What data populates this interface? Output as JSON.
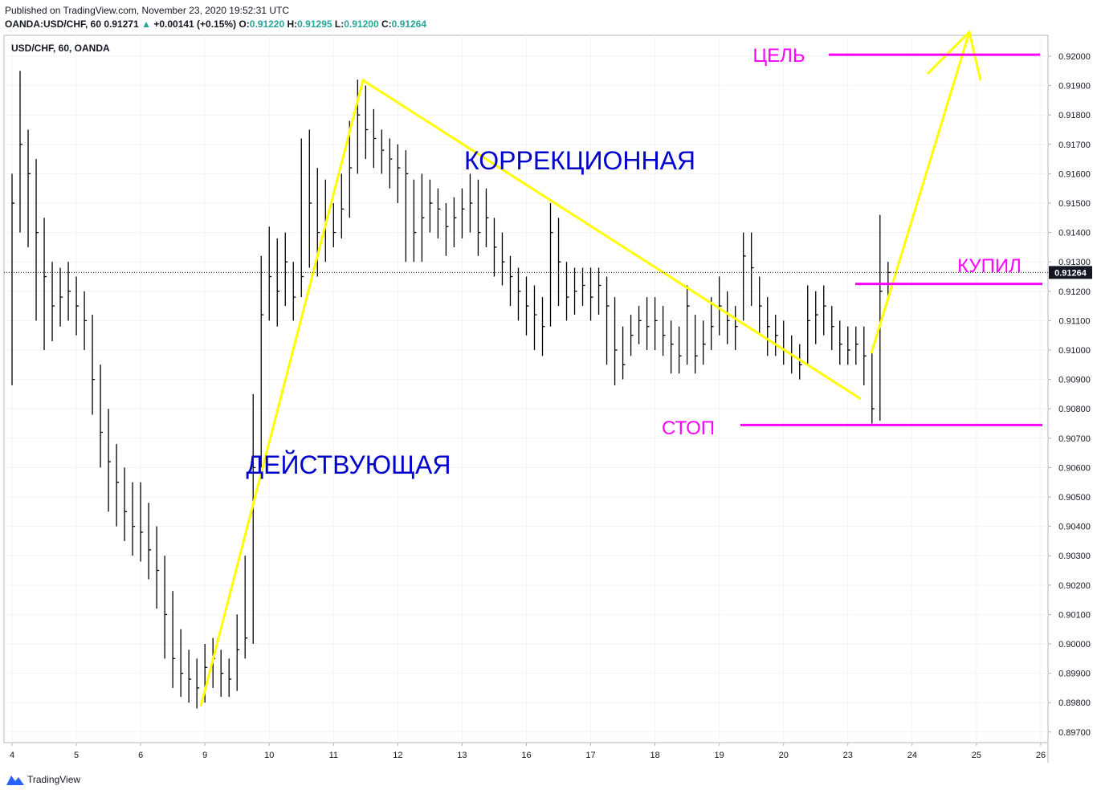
{
  "header": {
    "published": "Published on TradingView.com, November 23, 2020 19:52:31 UTC",
    "symbol": "OANDA:USD/CHF, 60",
    "price": "0.91271",
    "arrow": "▲",
    "change": "+0.00141 (+0.15%)",
    "o_label": "O:",
    "o": "0.91220",
    "h_label": "H:",
    "h": "0.91295",
    "l_label": "L:",
    "l": "0.91200",
    "c_label": "C:",
    "c": "0.91264"
  },
  "footer": {
    "brand": "TradingView"
  },
  "chart_data": {
    "type": "ohlc",
    "title": "USD/CHF, 60, OANDA",
    "color": "#000000",
    "grid": true,
    "xlim": [
      -0.125,
      16.113
    ],
    "ylim": [
      0.89664,
      0.92071
    ],
    "xticks": [
      {
        "value": 0,
        "label": "4"
      },
      {
        "value": 1,
        "label": "5"
      },
      {
        "value": 2,
        "label": "6"
      },
      {
        "value": 3,
        "label": "9"
      },
      {
        "value": 4,
        "label": "10"
      },
      {
        "value": 5,
        "label": "11"
      },
      {
        "value": 6,
        "label": "12"
      },
      {
        "value": 7,
        "label": "13"
      },
      {
        "value": 8,
        "label": "16"
      },
      {
        "value": 9,
        "label": "17"
      },
      {
        "value": 10,
        "label": "18"
      },
      {
        "value": 11,
        "label": "19"
      },
      {
        "value": 12,
        "label": "20"
      },
      {
        "value": 13,
        "label": "23"
      },
      {
        "value": 14,
        "label": "24"
      },
      {
        "value": 15,
        "label": "25"
      },
      {
        "value": 16,
        "label": "26"
      }
    ],
    "yticks": [
      {
        "value": 0.897,
        "label": "0.89700"
      },
      {
        "value": 0.898,
        "label": "0.89800"
      },
      {
        "value": 0.899,
        "label": "0.89900"
      },
      {
        "value": 0.9,
        "label": "0.90000"
      },
      {
        "value": 0.901,
        "label": "0.90100"
      },
      {
        "value": 0.902,
        "label": "0.90200"
      },
      {
        "value": 0.903,
        "label": "0.90300"
      },
      {
        "value": 0.904,
        "label": "0.90400"
      },
      {
        "value": 0.905,
        "label": "0.90500"
      },
      {
        "value": 0.906,
        "label": "0.90600"
      },
      {
        "value": 0.907,
        "label": "0.90700"
      },
      {
        "value": 0.908,
        "label": "0.90800"
      },
      {
        "value": 0.909,
        "label": "0.90900"
      },
      {
        "value": 0.91,
        "label": "0.91000"
      },
      {
        "value": 0.911,
        "label": "0.91100"
      },
      {
        "value": 0.912,
        "label": "0.91200"
      },
      {
        "value": 0.913,
        "label": "0.91300"
      },
      {
        "value": 0.914,
        "label": "0.91400"
      },
      {
        "value": 0.915,
        "label": "0.91500"
      },
      {
        "value": 0.916,
        "label": "0.91600"
      },
      {
        "value": 0.917,
        "label": "0.91700"
      },
      {
        "value": 0.918,
        "label": "0.91800"
      },
      {
        "value": 0.919,
        "label": "0.91900"
      },
      {
        "value": 0.92,
        "label": "0.92000"
      }
    ],
    "x": [
      0,
      0.125,
      0.25,
      0.375,
      0.5,
      0.625,
      0.75,
      0.875,
      1,
      1.125,
      1.25,
      1.375,
      1.5,
      1.625,
      1.75,
      1.875,
      2,
      2.125,
      2.25,
      2.375,
      2.5,
      2.625,
      2.75,
      2.875,
      3,
      3.125,
      3.25,
      3.375,
      3.5,
      3.625,
      3.75,
      3.875,
      4,
      4.125,
      4.25,
      4.375,
      4.5,
      4.625,
      4.75,
      4.875,
      5,
      5.125,
      5.25,
      5.375,
      5.5,
      5.625,
      5.75,
      5.875,
      6,
      6.125,
      6.25,
      6.375,
      6.5,
      6.625,
      6.75,
      6.875,
      7,
      7.125,
      7.25,
      7.375,
      7.5,
      7.625,
      7.75,
      7.875,
      8,
      8.125,
      8.25,
      8.375,
      8.5,
      8.625,
      8.75,
      8.875,
      9,
      9.125,
      9.25,
      9.375,
      9.5,
      9.625,
      9.75,
      9.875,
      10,
      10.125,
      10.25,
      10.375,
      10.5,
      10.625,
      10.75,
      10.875,
      11,
      11.125,
      11.25,
      11.375,
      11.5,
      11.625,
      11.75,
      11.875,
      12,
      12.125,
      12.25,
      12.375,
      12.5,
      12.625,
      12.75,
      12.875,
      13,
      13.125,
      13.25,
      13.375,
      13.5,
      13.625
    ],
    "high": [
      0.916,
      0.9195,
      0.9175,
      0.9165,
      0.9145,
      0.913,
      0.9128,
      0.913,
      0.9125,
      0.912,
      0.9112,
      0.9095,
      0.908,
      0.9068,
      0.906,
      0.9055,
      0.9055,
      0.9048,
      0.904,
      0.903,
      0.9018,
      0.9005,
      0.8998,
      0.8995,
      0.9,
      0.9002,
      0.8998,
      0.8995,
      0.901,
      0.903,
      0.9085,
      0.9132,
      0.9142,
      0.9138,
      0.914,
      0.913,
      0.9172,
      0.9175,
      0.9162,
      0.9158,
      0.915,
      0.916,
      0.9178,
      0.9192,
      0.919,
      0.9182,
      0.9175,
      0.9172,
      0.917,
      0.9168,
      0.9158,
      0.916,
      0.9158,
      0.9155,
      0.915,
      0.9152,
      0.9155,
      0.916,
      0.9158,
      0.9155,
      0.9145,
      0.914,
      0.9132,
      0.9128,
      0.9125,
      0.9122,
      0.9118,
      0.915,
      0.9145,
      0.913,
      0.9128,
      0.9128,
      0.9128,
      0.9128,
      0.9125,
      0.9118,
      0.9108,
      0.9112,
      0.9115,
      0.9118,
      0.9118,
      0.9115,
      0.911,
      0.9108,
      0.9122,
      0.9112,
      0.911,
      0.9118,
      0.9125,
      0.912,
      0.9115,
      0.914,
      0.914,
      0.9125,
      0.9118,
      0.9112,
      0.911,
      0.9105,
      0.9102,
      0.9122,
      0.912,
      0.9122,
      0.9115,
      0.911,
      0.9108,
      0.9108,
      0.9108,
      0.91,
      0.9146,
      0.913
    ],
    "low": [
      0.9088,
      0.914,
      0.9135,
      0.911,
      0.91,
      0.9103,
      0.9108,
      0.911,
      0.9105,
      0.91,
      0.9078,
      0.906,
      0.9045,
      0.904,
      0.9035,
      0.903,
      0.9028,
      0.9022,
      0.9012,
      0.8995,
      0.8985,
      0.8982,
      0.898,
      0.8978,
      0.898,
      0.8985,
      0.8982,
      0.8982,
      0.8984,
      0.8995,
      0.9,
      0.906,
      0.911,
      0.9108,
      0.9115,
      0.911,
      0.9118,
      0.9128,
      0.9125,
      0.913,
      0.9135,
      0.9138,
      0.9145,
      0.916,
      0.9165,
      0.9162,
      0.916,
      0.9155,
      0.915,
      0.913,
      0.913,
      0.913,
      0.914,
      0.9138,
      0.9132,
      0.9135,
      0.9138,
      0.914,
      0.9132,
      0.9135,
      0.9125,
      0.9122,
      0.9115,
      0.911,
      0.9105,
      0.91,
      0.9098,
      0.9108,
      0.9115,
      0.911,
      0.9112,
      0.9115,
      0.911,
      0.9112,
      0.9095,
      0.9088,
      0.909,
      0.9098,
      0.9102,
      0.91,
      0.91,
      0.9098,
      0.9092,
      0.9092,
      0.9095,
      0.9092,
      0.9095,
      0.91,
      0.9105,
      0.9102,
      0.91,
      0.911,
      0.9115,
      0.9105,
      0.9098,
      0.9098,
      0.9095,
      0.9092,
      0.909,
      0.9095,
      0.9102,
      0.9105,
      0.91,
      0.9095,
      0.9095,
      0.9095,
      0.9088,
      0.9075,
      0.9076,
      0.9118
    ],
    "close": [
      0.915,
      0.917,
      0.916,
      0.914,
      0.9125,
      0.9115,
      0.9118,
      0.912,
      0.9115,
      0.911,
      0.909,
      0.9072,
      0.9062,
      0.9055,
      0.9045,
      0.904,
      0.9038,
      0.9032,
      0.9025,
      0.901,
      0.8995,
      0.899,
      0.8988,
      0.8985,
      0.8992,
      0.8995,
      0.899,
      0.8988,
      0.8998,
      0.9002,
      0.906,
      0.9112,
      0.9125,
      0.912,
      0.913,
      0.9118,
      0.9125,
      0.915,
      0.914,
      0.9145,
      0.914,
      0.9148,
      0.9162,
      0.918,
      0.9175,
      0.9172,
      0.9168,
      0.9165,
      0.9162,
      0.916,
      0.914,
      0.9145,
      0.915,
      0.9148,
      0.9142,
      0.9145,
      0.9148,
      0.915,
      0.914,
      0.9145,
      0.9135,
      0.913,
      0.9125,
      0.912,
      0.9115,
      0.9112,
      0.9108,
      0.914,
      0.913,
      0.9118,
      0.912,
      0.9122,
      0.9118,
      0.9122,
      0.9115,
      0.91,
      0.9095,
      0.9105,
      0.911,
      0.9108,
      0.911,
      0.9105,
      0.9102,
      0.9098,
      0.9115,
      0.9098,
      0.9102,
      0.9108,
      0.9115,
      0.911,
      0.9108,
      0.9132,
      0.9128,
      0.9115,
      0.9108,
      0.9105,
      0.91,
      0.9098,
      0.9095,
      0.911,
      0.9112,
      0.9115,
      0.9108,
      0.9102,
      0.91,
      0.9102,
      0.9098,
      0.908,
      0.912,
      0.91264
    ],
    "last_label": "0.91264",
    "levels": [
      {
        "label": "ЦЕЛЬ",
        "value": 0.92005,
        "color": "#ff00ff"
      },
      {
        "label": "КУПИЛ",
        "value": 0.91225,
        "color": "#ff00ff"
      },
      {
        "label": "СТОП",
        "value": 0.90745,
        "color": "#ff00ff"
      }
    ],
    "annotations": [
      "КОРРЕКЦИОННАЯ",
      "ДЕЙСТВУЮЩАЯ"
    ]
  }
}
